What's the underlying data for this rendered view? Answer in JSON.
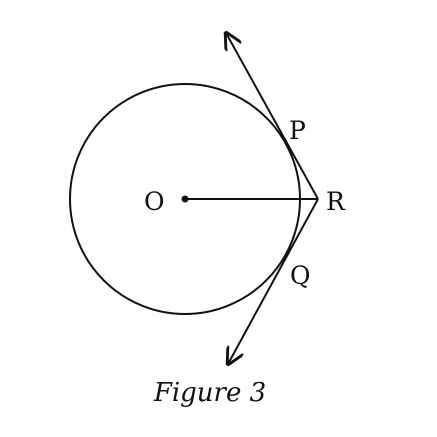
{
  "diagram": {
    "points": {
      "O": "O",
      "P": "P",
      "Q": "Q",
      "R": "R"
    },
    "caption": "Figure 3",
    "colors": {
      "stroke": "#111111",
      "background": "#ffffff"
    }
  }
}
